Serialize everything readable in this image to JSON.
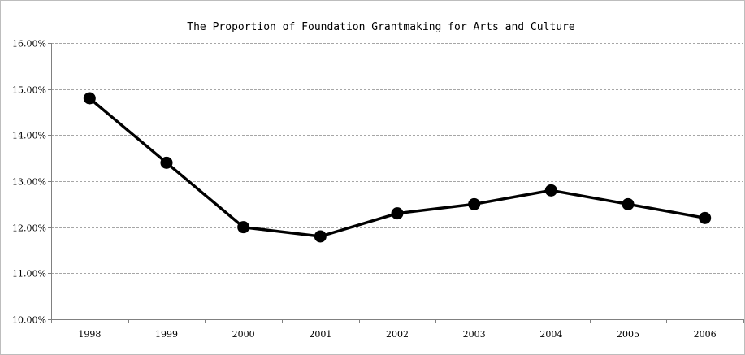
{
  "chart_data": {
    "type": "line",
    "title": "The Proportion of Foundation Grantmaking for Arts and Culture",
    "xlabel": "",
    "ylabel": "",
    "categories": [
      "1998",
      "1999",
      "2000",
      "2001",
      "2002",
      "2003",
      "2004",
      "2005",
      "2006"
    ],
    "series": [
      {
        "values": [
          14.8,
          13.4,
          12.0,
          11.8,
          12.3,
          12.5,
          12.8,
          12.5,
          12.2
        ],
        "color": "#000000"
      }
    ],
    "ylim": [
      10,
      16
    ],
    "yticks": [
      10,
      11,
      12,
      13,
      14,
      15,
      16
    ],
    "ytick_labels": [
      "10.00%",
      "11.00%",
      "12.00%",
      "13.00%",
      "14.00%",
      "15.00%",
      "16.00%"
    ],
    "grid": true,
    "legend": "none"
  }
}
